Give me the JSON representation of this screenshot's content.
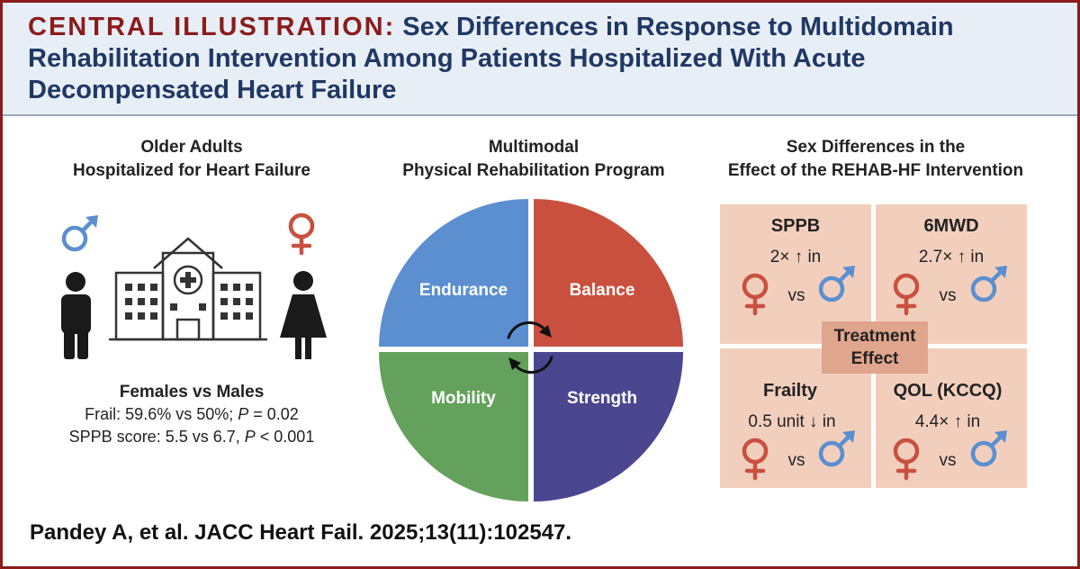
{
  "header": {
    "label": "CENTRAL ILLUSTRATION:",
    "title": "Sex Differences in Response to Multidomain Rehabilitation Intervention Among Patients Hospitalized With Acute Decompensated Heart Failure"
  },
  "left": {
    "heading_line1": "Older Adults",
    "heading_line2": "Hospitalized for Heart Failure",
    "stats_heading": "Females vs Males",
    "frail_prefix": "Frail: 59.6% vs 50%; ",
    "p_symbol": "P",
    "frail_p_value": " = 0.02",
    "sppb_line": "SPPB score: 5.5 vs 6.7, ",
    "sppb_p_value": " < 0.001"
  },
  "middle": {
    "heading_line1": "Multimodal",
    "heading_line2": "Physical Rehabilitation Program",
    "quadrants": [
      "Endurance",
      "Balance",
      "Mobility",
      "Strength"
    ]
  },
  "right": {
    "heading_line1": "Sex Differences in the",
    "heading_line2": "Effect of the REHAB-HF Intervention",
    "center_line1": "Treatment",
    "center_line2": "Effect",
    "vs": "vs",
    "cells": [
      {
        "title": "SPPB",
        "effect": "2× ↑ in"
      },
      {
        "title": "6MWD",
        "effect": "2.7× ↑ in"
      },
      {
        "title": "Frailty",
        "effect": "0.5 unit ↓ in"
      },
      {
        "title": "QOL (KCCQ)",
        "effect": "4.4× ↑ in"
      }
    ]
  },
  "citation": "Pandey A, et al. JACC Heart Fail. 2025;13(11):102547.",
  "colors": {
    "border": "#8a1c1c",
    "header_bg": "#e8eef6",
    "title": "#1f3864",
    "endurance": "#5b8fd0",
    "balance": "#c9503f",
    "mobility": "#64a15c",
    "strength": "#4b4690",
    "male": "#5b8fd0",
    "female": "#c9503f",
    "cell_bg": "#f2cfbd"
  }
}
